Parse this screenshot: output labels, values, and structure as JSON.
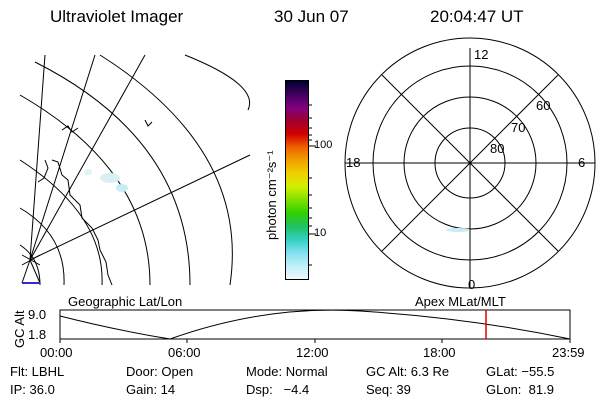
{
  "header": {
    "title": "Ultraviolet Imager",
    "date": "30 Jun 07",
    "time": "20:04:47 UT"
  },
  "map": {
    "label": "Geographic Lat/Lon"
  },
  "polar": {
    "label": "Apex MLat/MLT",
    "mlt_labels": {
      "top": "12",
      "left": "18",
      "right": "6",
      "bottom": "0"
    },
    "mlat_labels": [
      "60",
      "70",
      "80"
    ]
  },
  "colorbar": {
    "unit_label": "photon cm⁻²s⁻¹",
    "ticks": [
      "100",
      "10"
    ],
    "colors": [
      "#000030",
      "#400060",
      "#800080",
      "#a00030",
      "#d00000",
      "#f06000",
      "#f0a000",
      "#f0d000",
      "#d0f000",
      "#80e000",
      "#30d000",
      "#20c060",
      "#30d0c0",
      "#80e0f0",
      "#c0f0f8",
      "#f0f8ff"
    ]
  },
  "altitude_plot": {
    "ylabel": "GC Alt",
    "yticks": [
      "9.0",
      "1.8"
    ],
    "xticks": [
      "00:00",
      "06:00",
      "12:00",
      "18:00",
      "23:59"
    ],
    "current_time_color": "#e00000"
  },
  "footer": {
    "row1": [
      "Flt: LBHL",
      "Door: Open",
      "Mode: Normal",
      "GC Alt: 6.3 Re",
      "GLat: −55.5"
    ],
    "row2": [
      "IP: 36.0",
      "Gain: 14",
      "Dsp:   −4.4",
      "Seq: 39",
      "GLon:  81.9"
    ]
  }
}
